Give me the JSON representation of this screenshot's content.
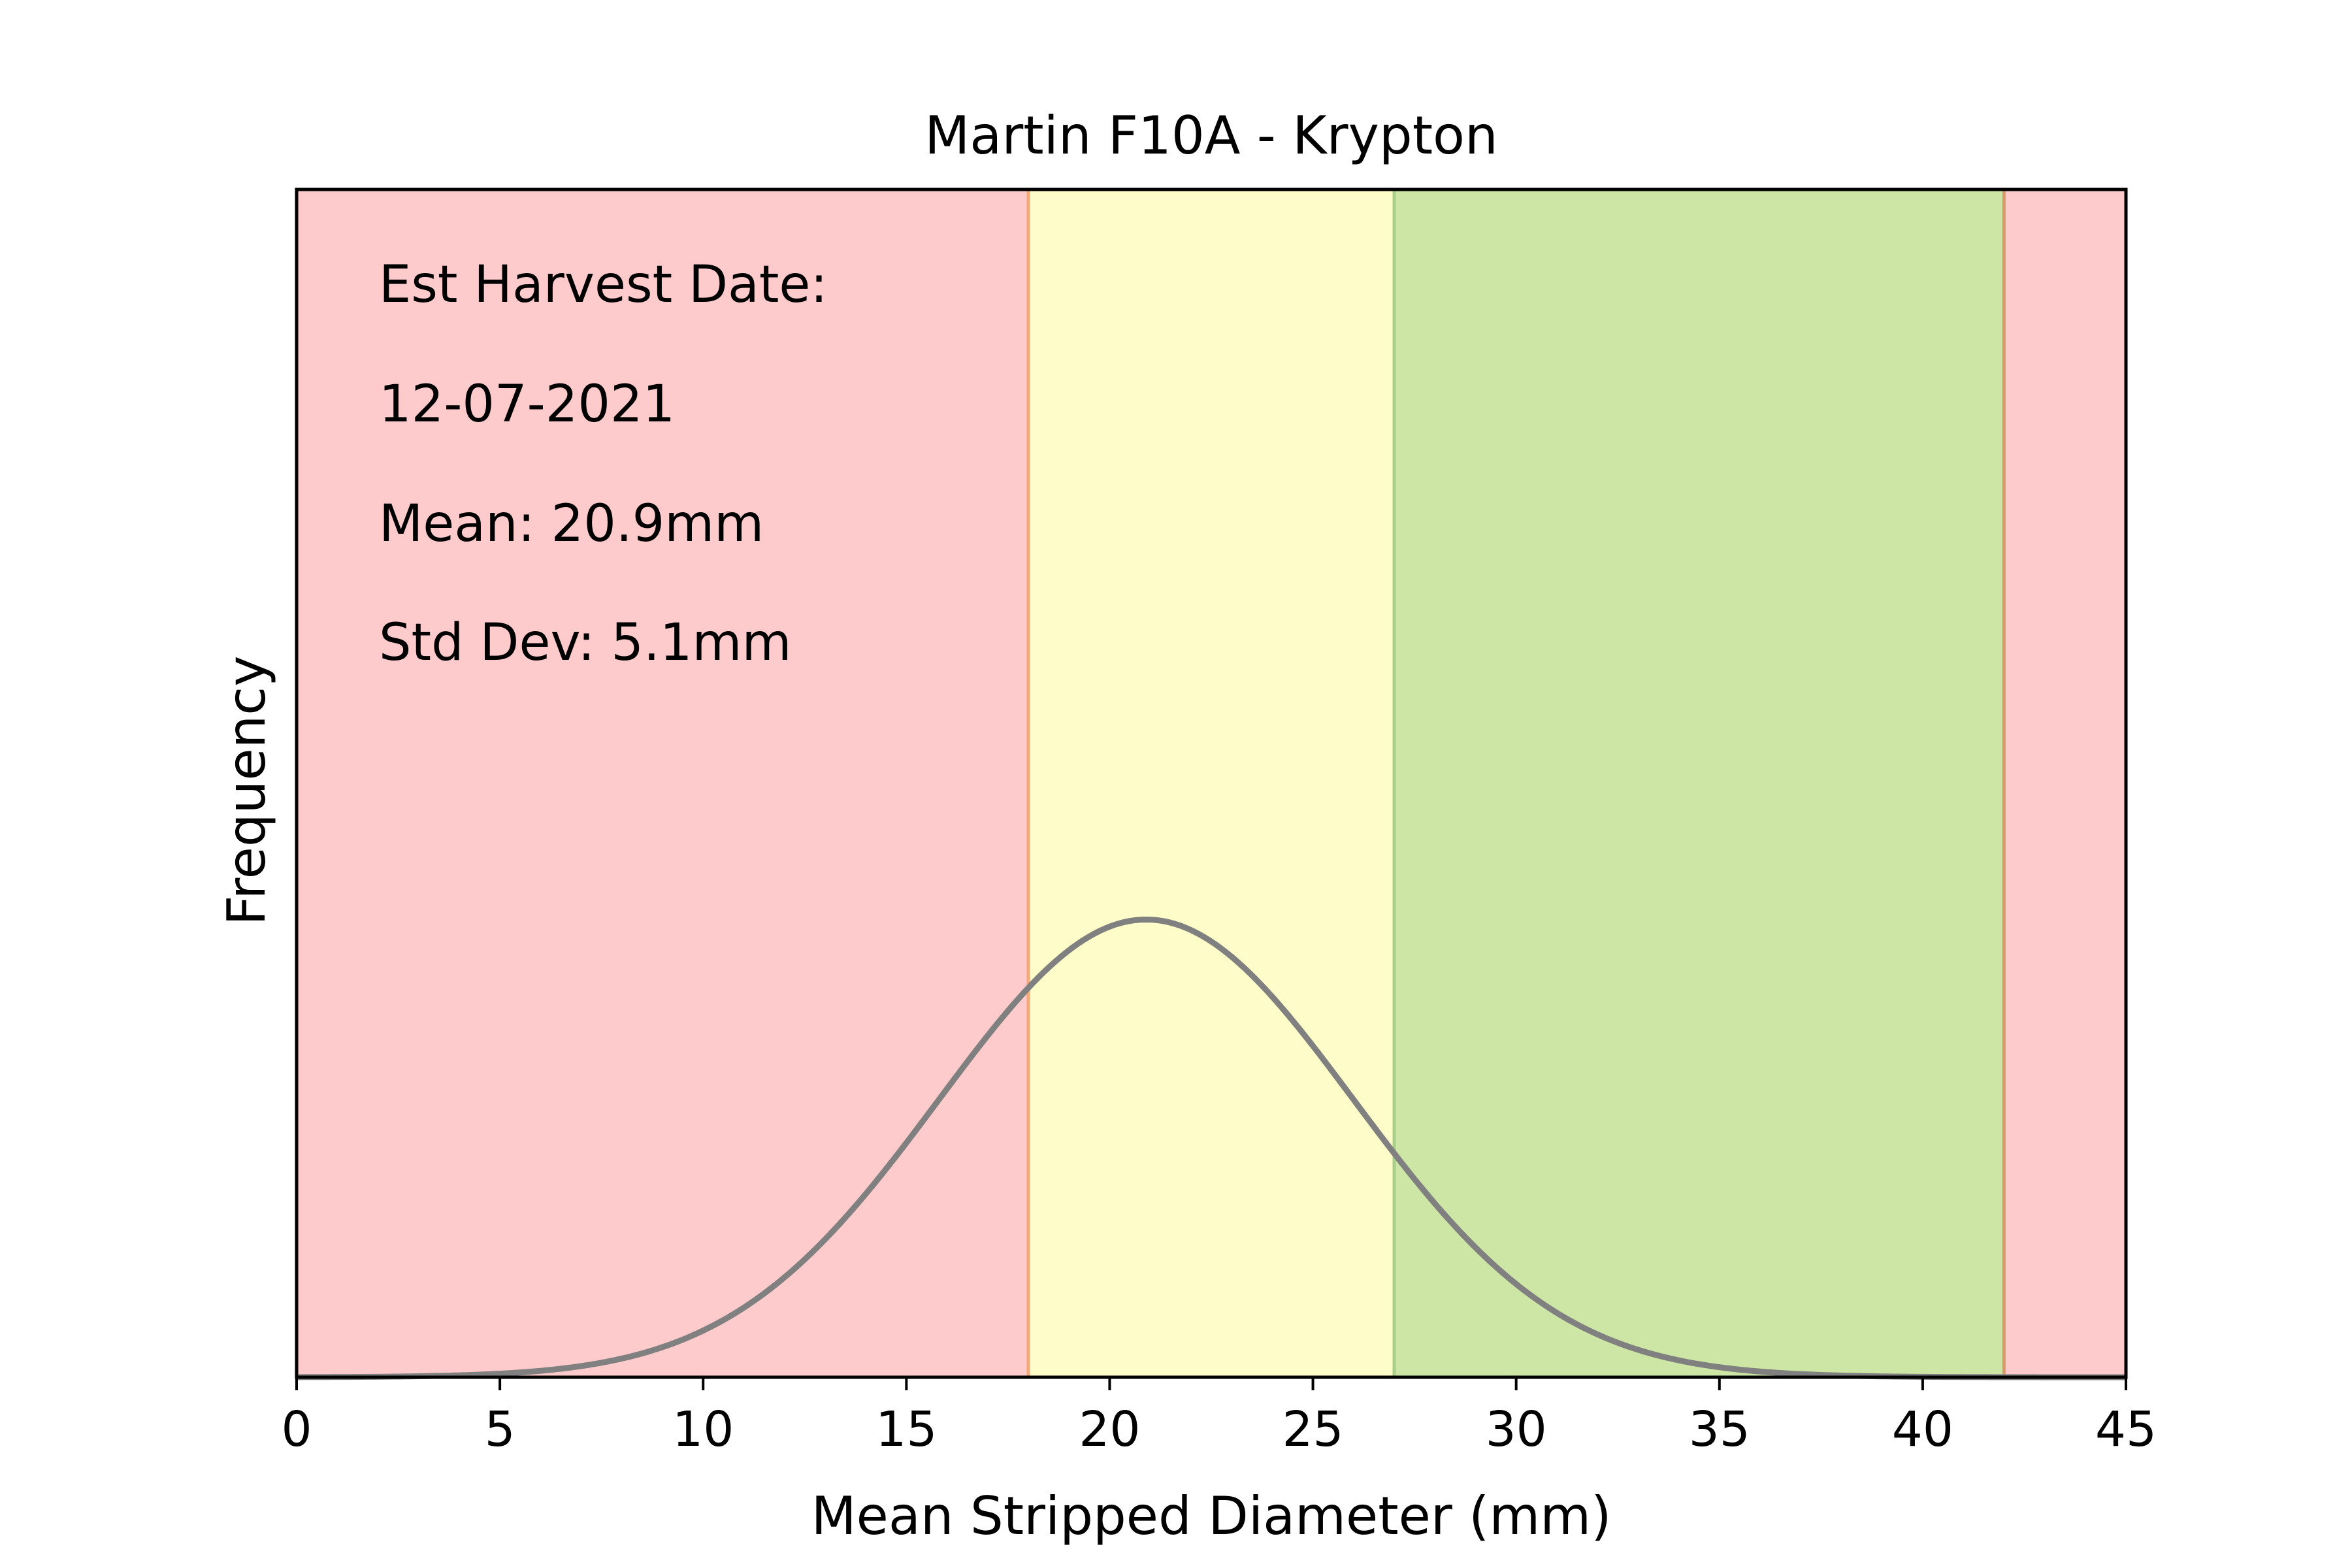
{
  "chart_data": {
    "type": "area",
    "title": "Martin F10A - Krypton",
    "xlabel": "Mean Stripped Diameter (mm)",
    "ylabel": "Frequency",
    "xlim": [
      0,
      45
    ],
    "ylim": [
      0,
      0.203
    ],
    "x_ticks": [
      "0",
      "5",
      "10",
      "15",
      "20",
      "25",
      "30",
      "35",
      "40",
      "45"
    ],
    "y_ticks_shown": false,
    "grid": false,
    "legend": "none",
    "distribution": {
      "kind": "normal",
      "mean": 20.9,
      "std": 5.1,
      "line_color": "#808080"
    },
    "zones": [
      {
        "from": 0,
        "to": 18,
        "color": "#fdcbcb"
      },
      {
        "from": 18,
        "to": 27,
        "color": "#fefdca"
      },
      {
        "from": 27,
        "to": 42,
        "color": "#cde6a5"
      },
      {
        "from": 42,
        "to": 45,
        "color": "#fdcbcb"
      }
    ],
    "boundaries": [
      {
        "x": 18,
        "color": "#f5a878"
      },
      {
        "x": 27,
        "color": "#a9cf8a"
      },
      {
        "x": 42,
        "color": "#d99a6a"
      }
    ],
    "annotations": [
      "Est Harvest Date:",
      "12-07-2021",
      "Mean: 20.9mm",
      "Std Dev: 5.1mm"
    ]
  }
}
